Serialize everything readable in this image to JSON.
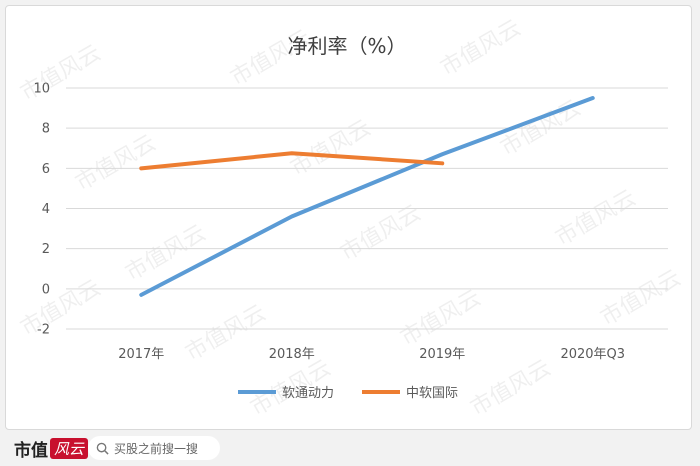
{
  "chart_data": {
    "type": "line",
    "title": "净利率（%）",
    "categories": [
      "2017年",
      "2018年",
      "2019年",
      "2020年Q3"
    ],
    "ylim": [
      -2,
      10
    ],
    "yticks": [
      -2,
      0,
      2,
      4,
      6,
      8,
      10
    ],
    "grid": true,
    "legend_position": "bottom",
    "series": [
      {
        "name": "软通动力",
        "color": "#5b9bd5",
        "values": [
          -0.3,
          3.6,
          6.7,
          9.5
        ]
      },
      {
        "name": "中软国际",
        "color": "#ed7d31",
        "values": [
          6.0,
          6.75,
          6.25,
          null
        ]
      }
    ]
  },
  "watermark": "市值风云",
  "footer": {
    "brand_a": "市值",
    "brand_b": "风云",
    "search_placeholder": "买股之前搜一搜"
  }
}
